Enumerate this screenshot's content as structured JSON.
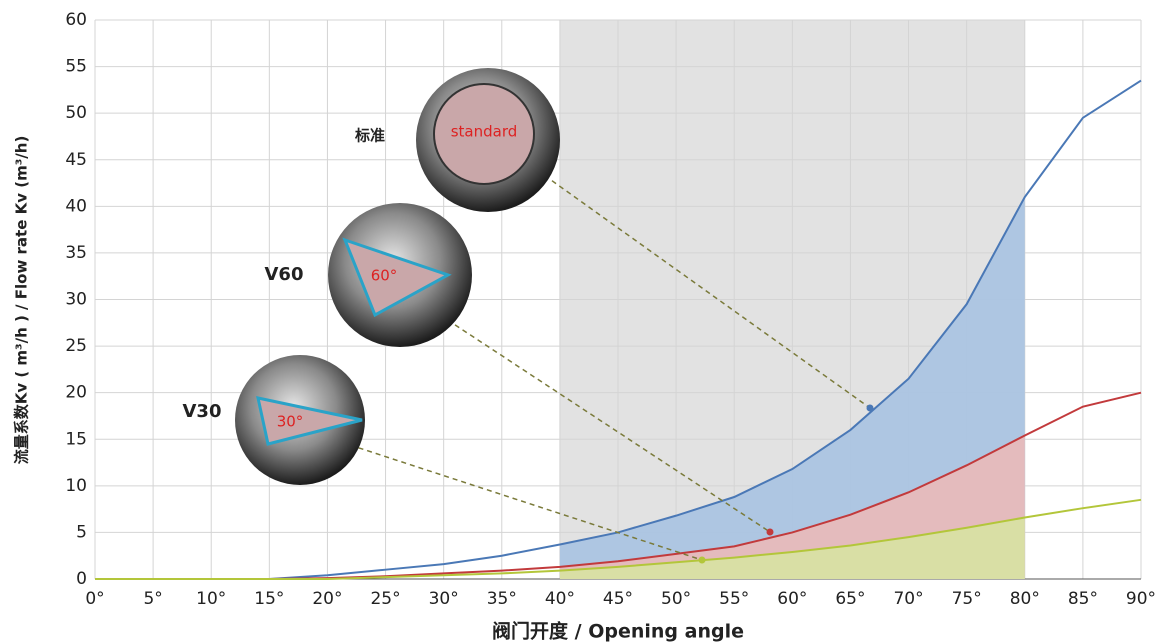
{
  "chart_data": {
    "type": "line",
    "x_label": "阀门开度 / Opening angle",
    "y_label": "流量系数Kv ( m³/h ) / Flow rate  Kv (m³/h)",
    "x": [
      0,
      5,
      10,
      15,
      20,
      25,
      30,
      35,
      40,
      45,
      50,
      55,
      60,
      65,
      70,
      75,
      80,
      85,
      90
    ],
    "series": [
      {
        "name": "标准",
        "color": "#4a78b6",
        "fill": "#a9c3e2",
        "values": [
          0,
          0,
          0,
          0,
          0.4,
          1,
          1.6,
          2.5,
          3.7,
          5,
          6.8,
          8.8,
          11.8,
          16,
          21.5,
          29.5,
          41,
          49.5,
          53.5
        ]
      },
      {
        "name": "V60",
        "color": "#c23a3c",
        "fill": "#eab9b9",
        "values": [
          0,
          0,
          0,
          0,
          0.1,
          0.3,
          0.6,
          0.9,
          1.3,
          1.9,
          2.7,
          3.5,
          5,
          6.9,
          9.3,
          12.2,
          15.4,
          18.5,
          20
        ]
      },
      {
        "name": "V30",
        "color": "#b3c63a",
        "fill": "#d7e3a2",
        "values": [
          0,
          0,
          0,
          0,
          0,
          0.2,
          0.4,
          0.6,
          0.9,
          1.3,
          1.8,
          2.3,
          2.9,
          3.6,
          4.5,
          5.5,
          6.6,
          7.6,
          8.5
        ]
      }
    ],
    "annotations": [
      "standard",
      "60°",
      "30°"
    ],
    "highlight_range": [
      40,
      80
    ],
    "xlim": [
      0,
      90
    ],
    "ylim": [
      0,
      60
    ],
    "xticks": [
      {
        "value": 0,
        "label": "0°"
      },
      {
        "value": 5,
        "label": "5°"
      },
      {
        "value": 10,
        "label": "10°"
      },
      {
        "value": 15,
        "label": "15°"
      },
      {
        "value": 20,
        "label": "20°"
      },
      {
        "value": 25,
        "label": "25°"
      },
      {
        "value": 30,
        "label": "30°"
      },
      {
        "value": 35,
        "label": "35°"
      },
      {
        "value": 40,
        "label": "40°"
      },
      {
        "value": 45,
        "label": "45°"
      },
      {
        "value": 50,
        "label": "50°"
      },
      {
        "value": 55,
        "label": "55°"
      },
      {
        "value": 60,
        "label": "60°"
      },
      {
        "value": 65,
        "label": "65°"
      },
      {
        "value": 70,
        "label": "70°"
      },
      {
        "value": 75,
        "label": "75°"
      },
      {
        "value": 80,
        "label": "80°"
      },
      {
        "value": 85,
        "label": "85°"
      },
      {
        "value": 90,
        "label": "90°"
      }
    ],
    "yticks": [
      0,
      5,
      10,
      15,
      20,
      25,
      30,
      35,
      40,
      45,
      50,
      55,
      60
    ],
    "grid": true
  }
}
